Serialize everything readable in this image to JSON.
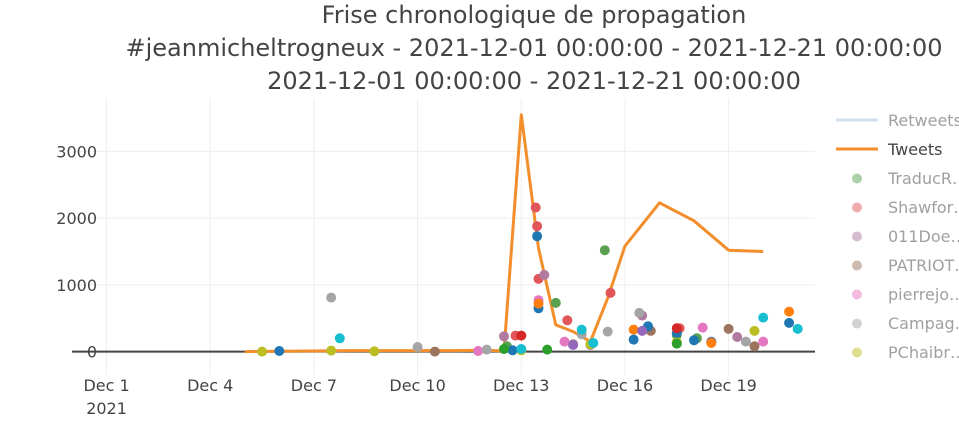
{
  "chart_data": {
    "type": "line",
    "title_lines": [
      "Frise chronologique de propagation",
      "#jeanmicheltrogneux - 2021-12-01 00:00:00 - 2021-12-21 00:00:00",
      "2021-12-01 00:00:00 - 2021-12-21 00:00:00"
    ],
    "xlim": [
      "2021-11-30T00:00",
      "2021-12-21T12:00"
    ],
    "ylim": [
      -350,
      3800
    ],
    "y_ticks": [
      0,
      1000,
      2000,
      3000
    ],
    "y_tick_labels": [
      "0",
      "1000",
      "2000",
      "3000"
    ],
    "x_ticks": [
      {
        "date": "2021-12-01",
        "label": "Dec 1",
        "sublabel": "2021"
      },
      {
        "date": "2021-12-04",
        "label": "Dec 4",
        "sublabel": ""
      },
      {
        "date": "2021-12-07",
        "label": "Dec 7",
        "sublabel": ""
      },
      {
        "date": "2021-12-10",
        "label": "Dec 10",
        "sublabel": ""
      },
      {
        "date": "2021-12-13",
        "label": "Dec 13",
        "sublabel": ""
      },
      {
        "date": "2021-12-16",
        "label": "Dec 16",
        "sublabel": ""
      },
      {
        "date": "2021-12-19",
        "label": "Dec 19",
        "sublabel": ""
      }
    ],
    "grid": true,
    "legend_placement": "right",
    "series": [
      {
        "name": "Retweets",
        "kind": "line",
        "color": "#9ebfdb",
        "dimmed": true,
        "points": []
      },
      {
        "name": "Tweets",
        "kind": "line",
        "color": "#f28e2b",
        "dimmed": false,
        "points": [
          [
            "2021-12-05T00:00",
            0
          ],
          [
            "2021-12-06T00:00",
            5
          ],
          [
            "2021-12-07T00:00",
            10
          ],
          [
            "2021-12-08T00:00",
            15
          ],
          [
            "2021-12-09T00:00",
            15
          ],
          [
            "2021-12-10T00:00",
            15
          ],
          [
            "2021-12-11T00:00",
            15
          ],
          [
            "2021-12-12T00:00",
            20
          ],
          [
            "2021-12-12T12:00",
            10
          ],
          [
            "2021-12-13T00:00",
            3550
          ],
          [
            "2021-12-13T12:00",
            1550
          ],
          [
            "2021-12-14T00:00",
            400
          ],
          [
            "2021-12-14T12:00",
            300
          ],
          [
            "2021-12-15T00:00",
            150
          ],
          [
            "2021-12-15T12:00",
            800
          ],
          [
            "2021-12-16T00:00",
            1580
          ],
          [
            "2021-12-17T00:00",
            2230
          ],
          [
            "2021-12-18T00:00",
            1960
          ],
          [
            "2021-12-19T00:00",
            1520
          ],
          [
            "2021-12-20T00:00",
            1500
          ]
        ]
      },
      {
        "name": "TraducR…",
        "kind": "scatter",
        "color": "#59a14f",
        "dimmed": true,
        "points": [
          [
            "2021-12-12T14:00",
            80
          ],
          [
            "2021-12-14T00:00",
            730
          ],
          [
            "2021-12-15T10:00",
            1520
          ],
          [
            "2021-12-17T12:00",
            250
          ],
          [
            "2021-12-18T02:00",
            200
          ]
        ]
      },
      {
        "name": "Shawfor…",
        "kind": "scatter",
        "color": "#e15759",
        "dimmed": true,
        "points": [
          [
            "2021-12-12T20:00",
            240
          ],
          [
            "2021-12-13T10:00",
            2160
          ],
          [
            "2021-12-13T11:00",
            1880
          ],
          [
            "2021-12-13T12:00",
            1090
          ],
          [
            "2021-12-14T08:00",
            470
          ],
          [
            "2021-12-15T14:00",
            880
          ],
          [
            "2021-12-17T14:00",
            350
          ]
        ]
      },
      {
        "name": "011Doe…",
        "kind": "scatter",
        "color": "#b07aa1",
        "dimmed": true,
        "points": [
          [
            "2021-12-12T12:00",
            230
          ],
          [
            "2021-12-13T16:00",
            1150
          ],
          [
            "2021-12-15T00:00",
            100
          ],
          [
            "2021-12-16T12:00",
            540
          ],
          [
            "2021-12-18T12:00",
            150
          ],
          [
            "2021-12-19T06:00",
            220
          ]
        ]
      },
      {
        "name": "PATRIOT…",
        "kind": "scatter",
        "color": "#9c755f",
        "dimmed": true,
        "points": [
          [
            "2021-12-10T12:00",
            0
          ],
          [
            "2021-12-14T12:00",
            110
          ],
          [
            "2021-12-16T18:00",
            310
          ],
          [
            "2021-12-17T12:00",
            120
          ],
          [
            "2021-12-19T00:00",
            340
          ],
          [
            "2021-12-19T18:00",
            80
          ]
        ]
      },
      {
        "name": "pierrejo…",
        "kind": "scatter",
        "color": "#e377c2",
        "dimmed": true,
        "points": [
          [
            "2021-12-11T18:00",
            10
          ],
          [
            "2021-12-13T12:00",
            770
          ],
          [
            "2021-12-14T06:00",
            150
          ],
          [
            "2021-12-18T06:00",
            360
          ],
          [
            "2021-12-20T00:00",
            150
          ]
        ]
      },
      {
        "name": "Campag…",
        "kind": "scatter",
        "color": "#a5a5a5",
        "dimmed": true,
        "points": [
          [
            "2021-12-07T12:00",
            810
          ],
          [
            "2021-12-10T00:00",
            70
          ],
          [
            "2021-12-12T00:00",
            30
          ],
          [
            "2021-12-14T18:00",
            260
          ],
          [
            "2021-12-15T12:00",
            300
          ],
          [
            "2021-12-16T10:00",
            580
          ],
          [
            "2021-12-19T12:00",
            150
          ]
        ]
      },
      {
        "name": "PChaibr…",
        "kind": "scatter",
        "color": "#bcbd22",
        "dimmed": true,
        "points": [
          [
            "2021-12-05T12:00",
            0
          ],
          [
            "2021-12-07T12:00",
            15
          ],
          [
            "2021-12-08T18:00",
            5
          ],
          [
            "2021-12-13T00:00",
            20
          ],
          [
            "2021-12-15T00:00",
            110
          ],
          [
            "2021-12-17T12:00",
            140
          ],
          [
            "2021-12-19T18:00",
            310
          ]
        ]
      },
      {
        "name": "",
        "kind": "scatter",
        "color": "#1f77b4",
        "dimmed": false,
        "points": [
          [
            "2021-12-06T00:00",
            10
          ],
          [
            "2021-12-12T18:00",
            20
          ],
          [
            "2021-12-13T11:00",
            1730
          ],
          [
            "2021-12-13T12:00",
            650
          ],
          [
            "2021-12-16T06:00",
            180
          ],
          [
            "2021-12-16T16:00",
            380
          ],
          [
            "2021-12-17T12:00",
            280
          ],
          [
            "2021-12-18T00:00",
            170
          ],
          [
            "2021-12-18T12:00",
            140
          ],
          [
            "2021-12-20T18:00",
            430
          ]
        ]
      },
      {
        "name": "",
        "kind": "scatter",
        "color": "#17becf",
        "dimmed": false,
        "points": [
          [
            "2021-12-07T18:00",
            200
          ],
          [
            "2021-12-13T00:00",
            40
          ],
          [
            "2021-12-14T18:00",
            330
          ],
          [
            "2021-12-15T02:00",
            130
          ],
          [
            "2021-12-20T00:00",
            510
          ],
          [
            "2021-12-21T00:00",
            340
          ]
        ]
      },
      {
        "name": "",
        "kind": "scatter",
        "color": "#2ca02c",
        "dimmed": false,
        "points": [
          [
            "2021-12-12T12:00",
            40
          ],
          [
            "2021-12-13T18:00",
            30
          ],
          [
            "2021-12-17T12:00",
            120
          ]
        ]
      },
      {
        "name": "",
        "kind": "scatter",
        "color": "#d62728",
        "dimmed": false,
        "points": [
          [
            "2021-12-13T00:00",
            240
          ],
          [
            "2021-12-17T12:00",
            350
          ]
        ]
      },
      {
        "name": "",
        "kind": "scatter",
        "color": "#ff7f0e",
        "dimmed": false,
        "points": [
          [
            "2021-12-13T12:00",
            720
          ],
          [
            "2021-12-16T06:00",
            330
          ],
          [
            "2021-12-18T12:00",
            130
          ],
          [
            "2021-12-20T18:00",
            600
          ]
        ]
      },
      {
        "name": "",
        "kind": "scatter",
        "color": "#9467bd",
        "dimmed": false,
        "points": [
          [
            "2021-12-14T12:00",
            100
          ],
          [
            "2021-12-16T12:00",
            310
          ]
        ]
      }
    ]
  }
}
